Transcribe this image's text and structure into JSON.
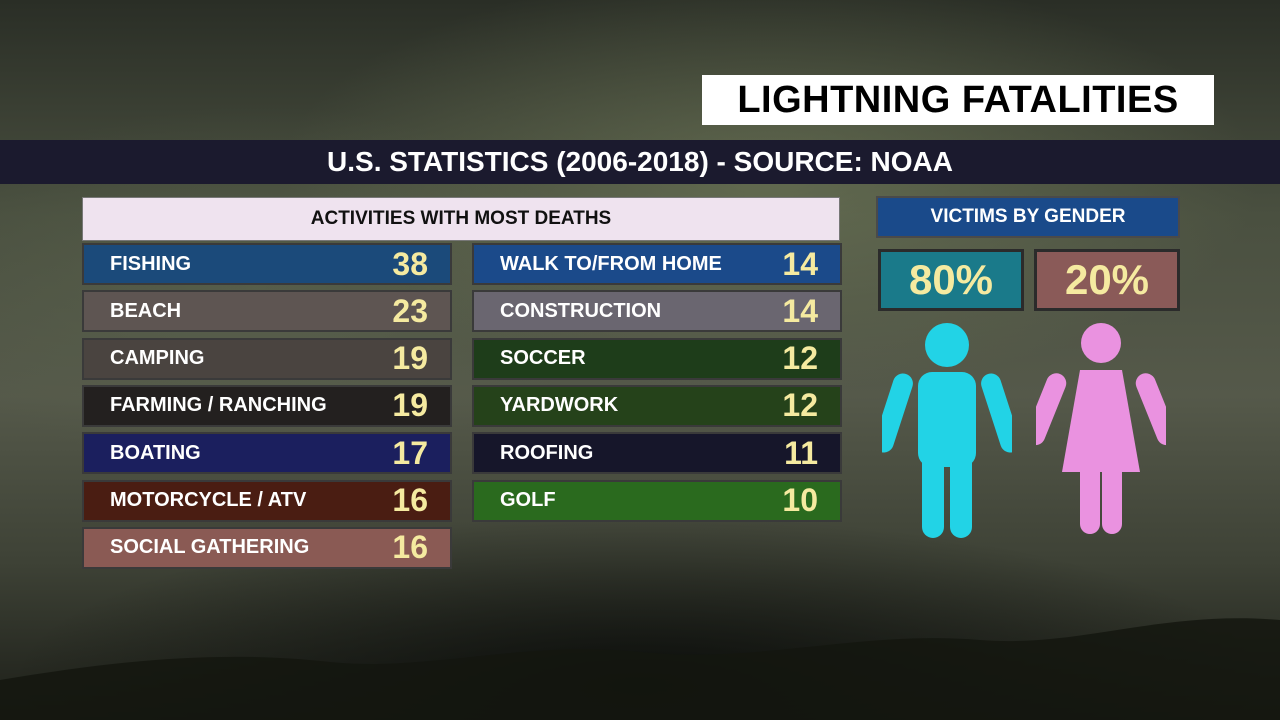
{
  "title": "LIGHTNING FATALITIES",
  "subtitle": "U.S. STATISTICS (2006-2018) - SOURCE:  NOAA",
  "chart_data": [
    {
      "type": "table",
      "title": "ACTIVITIES WITH MOST DEATHS",
      "columns": [
        [
          {
            "label": "FISHING",
            "value": 38,
            "color": "#1b4a7a"
          },
          {
            "label": "BEACH",
            "value": 23,
            "color": "#5e5552"
          },
          {
            "label": "CAMPING",
            "value": 19,
            "color": "#4a4440"
          },
          {
            "label": "FARMING / RANCHING",
            "value": 19,
            "color": "#23201f"
          },
          {
            "label": "BOATING",
            "value": 17,
            "color": "#1b1f5e"
          },
          {
            "label": "MOTORCYCLE / ATV",
            "value": 16,
            "color": "#4a1d12"
          },
          {
            "label": "SOCIAL GATHERING",
            "value": 16,
            "color": "#8a5a54"
          }
        ],
        [
          {
            "label": "WALK TO/FROM HOME",
            "value": 14,
            "color": "#1b4a8a"
          },
          {
            "label": "CONSTRUCTION",
            "value": 14,
            "color": "#6a6670"
          },
          {
            "label": "SOCCER",
            "value": 12,
            "color": "#1e3d1a"
          },
          {
            "label": "YARDWORK",
            "value": 12,
            "color": "#25421a"
          },
          {
            "label": "ROOFING",
            "value": 11,
            "color": "#16162a"
          },
          {
            "label": "GOLF",
            "value": 10,
            "color": "#2a6a1e"
          }
        ]
      ]
    },
    {
      "type": "table",
      "title": "VICTIMS BY GENDER",
      "items": [
        {
          "label": "male",
          "value_text": "80%",
          "value": 80,
          "color": "#1a7a8a",
          "figure_color": "#22d3e6"
        },
        {
          "label": "female",
          "value_text": "20%",
          "value": 20,
          "color": "#8a5a58",
          "figure_color": "#ea92e0"
        }
      ]
    }
  ]
}
